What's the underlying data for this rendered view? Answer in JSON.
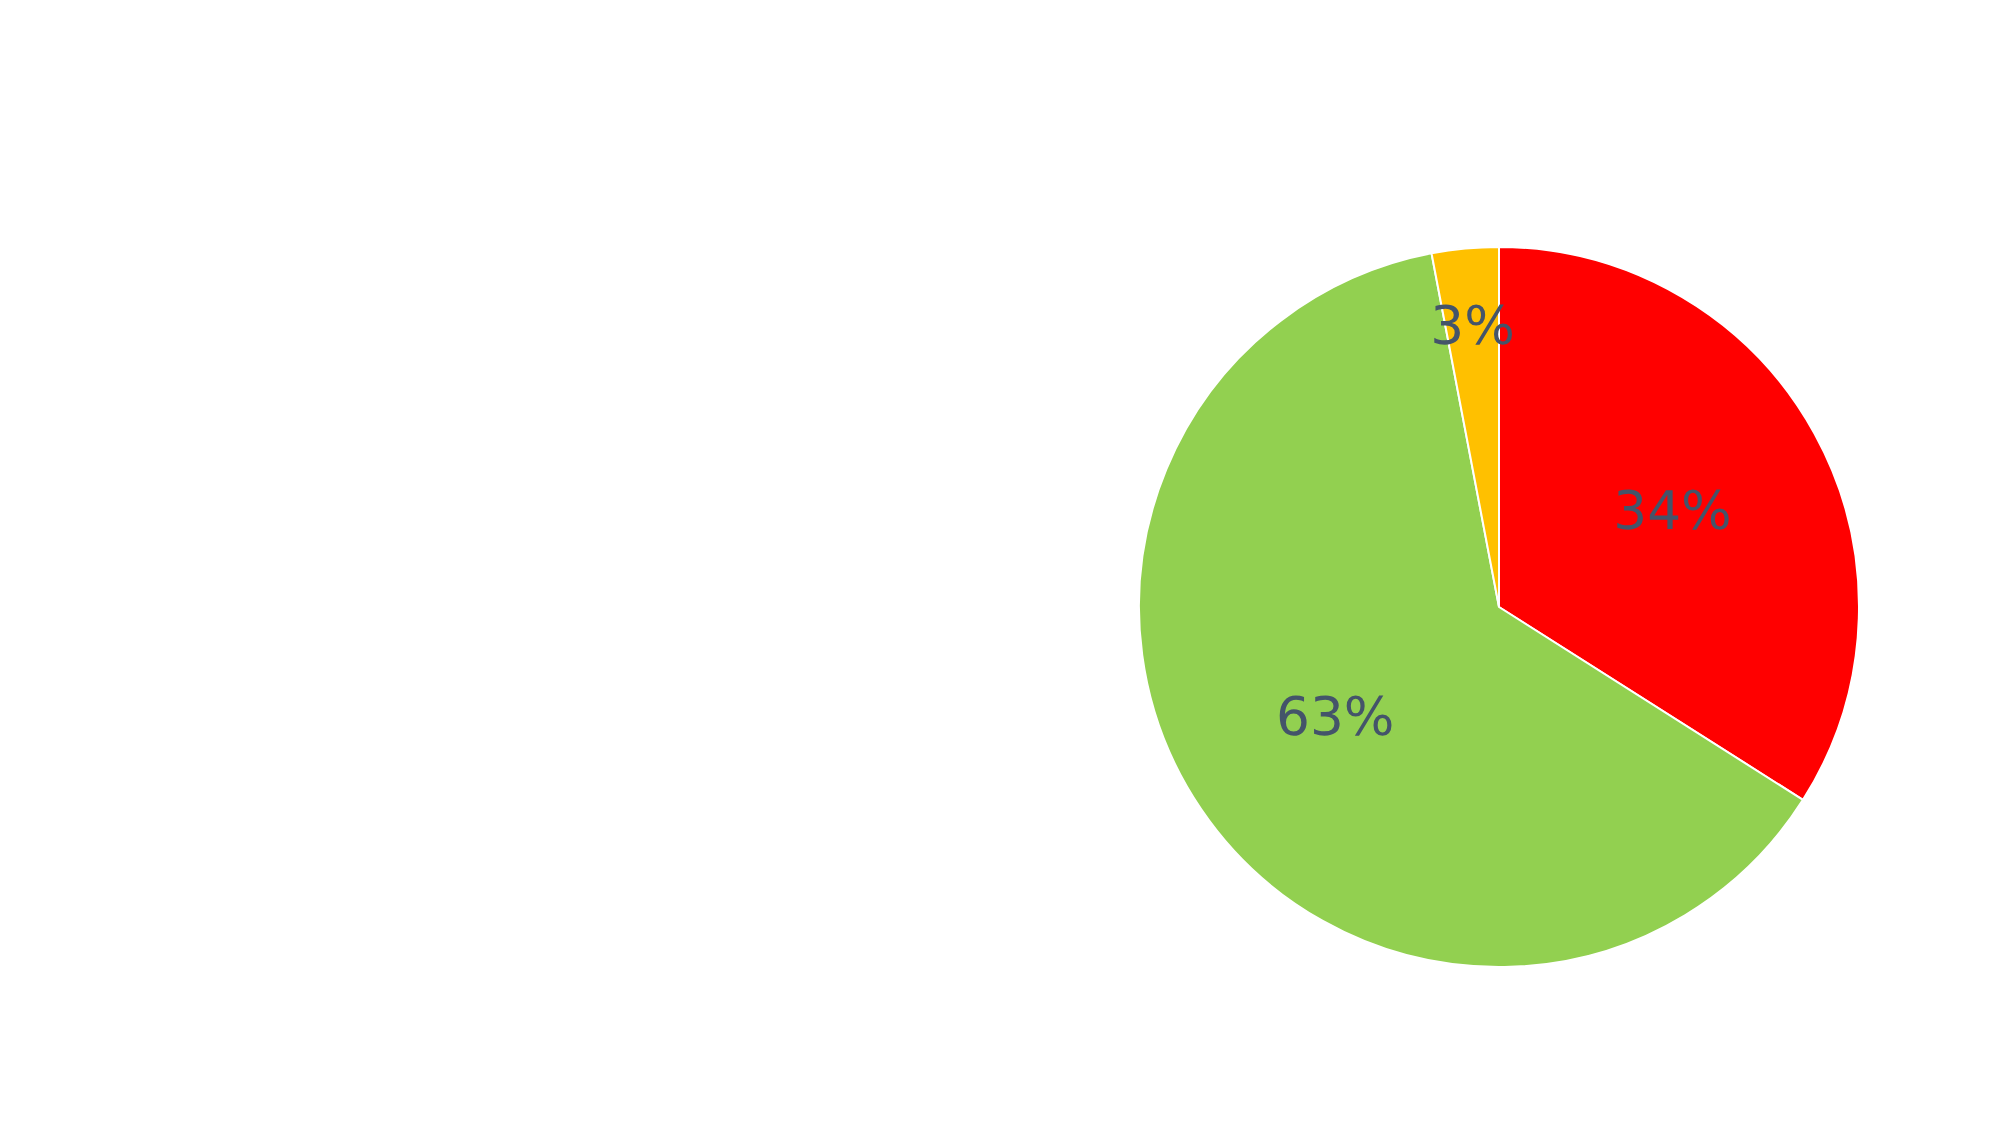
{
  "chart_data": {
    "type": "pie",
    "categories": [
      null,
      null,
      null
    ],
    "values": [
      34,
      63,
      3
    ],
    "colors": [
      "#ff0000",
      "#92d050",
      "#ffc000"
    ],
    "value_labels": [
      "34%",
      "63%",
      "3%"
    ]
  }
}
